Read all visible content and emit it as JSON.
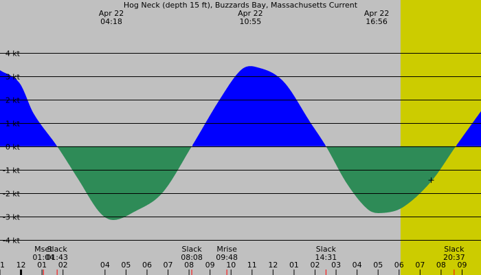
{
  "chart_data": {
    "type": "area",
    "title": "Hog Neck (depth 15 ft), Buzzards Bay, Massachusetts Current",
    "xlabel": "",
    "ylabel": "",
    "unit": "kt",
    "ylim": [
      -5.5,
      6.25
    ],
    "xlim_hours": [
      -13.0,
      9.9
    ],
    "grid": true,
    "colors": {
      "background_night": "#c0c0c0",
      "background_day": "#cccc00",
      "flood": "#0000ff",
      "ebb": "#2e8b57",
      "grid": "#000000",
      "marker": "#ff0000"
    },
    "daylight": {
      "start_hour": 6.07,
      "end_hour": 19.65
    },
    "y_ticks": [
      {
        "value": 4,
        "label": "4 kt"
      },
      {
        "value": 3,
        "label": "3 kt"
      },
      {
        "value": 2,
        "label": "2 kt"
      },
      {
        "value": 1,
        "label": "1 kt"
      },
      {
        "value": 0,
        "label": "0 kt"
      },
      {
        "value": -1,
        "label": "-1 kt"
      },
      {
        "value": -2,
        "label": "-2 kt"
      },
      {
        "value": -3,
        "label": "-3 kt"
      },
      {
        "value": -4,
        "label": "-4 kt"
      }
    ],
    "x_ticks": [
      {
        "hour": -13,
        "label": "11"
      },
      {
        "hour": -12,
        "label": "12"
      },
      {
        "hour": -11,
        "label": "01"
      },
      {
        "hour": -10,
        "label": "02"
      },
      {
        "hour": -8,
        "label": "04"
      },
      {
        "hour": -7,
        "label": "05"
      },
      {
        "hour": -6,
        "label": "06"
      },
      {
        "hour": -5,
        "label": "07"
      },
      {
        "hour": -4,
        "label": "08"
      },
      {
        "hour": -3,
        "label": "09"
      },
      {
        "hour": -2,
        "label": "10"
      },
      {
        "hour": -1,
        "label": "11"
      },
      {
        "hour": 0,
        "label": "12"
      },
      {
        "hour": 1,
        "label": "01"
      },
      {
        "hour": 2,
        "label": "02"
      },
      {
        "hour": 3,
        "label": "03"
      },
      {
        "hour": 4,
        "label": "04"
      },
      {
        "hour": 5,
        "label": "05"
      },
      {
        "hour": 6,
        "label": "06"
      },
      {
        "hour": 7,
        "label": "07"
      },
      {
        "hour": 8,
        "label": "08"
      },
      {
        "hour": 9,
        "label": "09"
      }
    ],
    "curve_points": [
      {
        "hour": -13.0,
        "kt": 3.25
      },
      {
        "hour": -12.07,
        "kt": 2.7
      },
      {
        "hour": -11.4,
        "kt": 1.4
      },
      {
        "hour": -10.28,
        "kt": 0.0
      },
      {
        "hour": -9.28,
        "kt": -1.4
      },
      {
        "hour": -8.28,
        "kt": -2.8
      },
      {
        "hour": -7.61,
        "kt": -3.15
      },
      {
        "hour": -6.61,
        "kt": -2.8
      },
      {
        "hour": -5.28,
        "kt": -2.0
      },
      {
        "hour": -3.87,
        "kt": 0.0
      },
      {
        "hour": -2.54,
        "kt": 2.0
      },
      {
        "hour": -1.54,
        "kt": 3.25
      },
      {
        "hour": -0.87,
        "kt": 3.4
      },
      {
        "hour": 0.46,
        "kt": 2.8
      },
      {
        "hour": 1.79,
        "kt": 1.0
      },
      {
        "hour": 2.52,
        "kt": 0.0
      },
      {
        "hour": 3.52,
        "kt": -1.6
      },
      {
        "hour": 4.52,
        "kt": -2.7
      },
      {
        "hour": 5.19,
        "kt": -2.85
      },
      {
        "hour": 6.19,
        "kt": -2.6
      },
      {
        "hour": 7.53,
        "kt": -1.5
      },
      {
        "hour": 8.7,
        "kt": 0.0
      },
      {
        "hour": 9.9,
        "kt": 1.5
      }
    ],
    "top_annotations": [
      {
        "hour": -7.7,
        "date": "Apr 22",
        "time": "04:18"
      },
      {
        "hour": -1.08,
        "date": "Apr 22",
        "time": "10:55"
      },
      {
        "hour": 4.93,
        "date": "Apr 22",
        "time": "16:56"
      }
    ],
    "bottom_events": [
      {
        "hour": -10.93,
        "name": "Mset",
        "time": "01:04"
      },
      {
        "hour": -10.28,
        "name": "Slack",
        "time": "01:43"
      },
      {
        "hour": -3.87,
        "name": "Slack",
        "time": "08:08"
      },
      {
        "hour": -2.2,
        "name": "Mrise",
        "time": "09:48"
      },
      {
        "hour": 2.52,
        "name": "Slack",
        "time": "14:31"
      },
      {
        "hour": 8.62,
        "name": "Slack",
        "time": "20:37"
      }
    ],
    "current_point": {
      "hour": 7.53,
      "kt": -1.45
    }
  }
}
